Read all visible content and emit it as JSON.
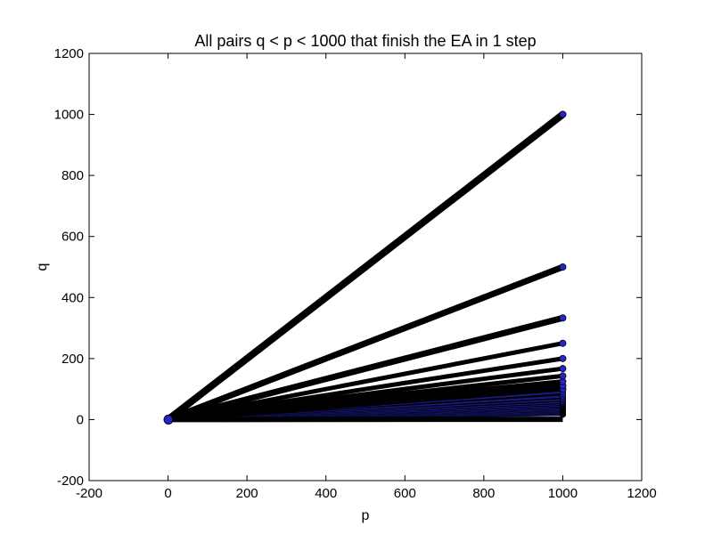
{
  "chart_data": {
    "type": "scatter",
    "title": "All pairs q < p < 1000 that finish the EA in 1 step",
    "xlabel": "p",
    "ylabel": "q",
    "xlim": [
      -200,
      1200
    ],
    "ylim": [
      -200,
      1200
    ],
    "xticks": [
      "-200",
      "0",
      "200",
      "400",
      "600",
      "800",
      "1000",
      "1200"
    ],
    "yticks": [
      "-200",
      "0",
      "200",
      "400",
      "600",
      "800",
      "1000",
      "1200"
    ],
    "grid": false,
    "legend": "none",
    "description_rule": "points (p, q) with q = p / k for integer k >= 1, 0 < p <= 1000",
    "lines": [
      {
        "k": 1,
        "x_end": 1000,
        "y_end": 1000
      },
      {
        "k": 2,
        "x_end": 1000,
        "y_end": 500
      },
      {
        "k": 3,
        "x_end": 1000,
        "y_end": 333
      },
      {
        "k": 4,
        "x_end": 1000,
        "y_end": 250
      },
      {
        "k": 5,
        "x_end": 1000,
        "y_end": 200
      },
      {
        "k": 6,
        "x_end": 1000,
        "y_end": 167
      },
      {
        "k": 7,
        "x_end": 1000,
        "y_end": 143
      },
      {
        "k": 8,
        "x_end": 1000,
        "y_end": 125
      },
      {
        "k": 9,
        "x_end": 1000,
        "y_end": 111
      },
      {
        "k": 10,
        "x_end": 1000,
        "y_end": 100
      }
    ],
    "dense_region": {
      "x_range": [
        0,
        1000
      ],
      "y_range": [
        0,
        90
      ]
    },
    "colors": {
      "marker_fill": "#2626c8",
      "marker_edge": "#000000"
    }
  }
}
